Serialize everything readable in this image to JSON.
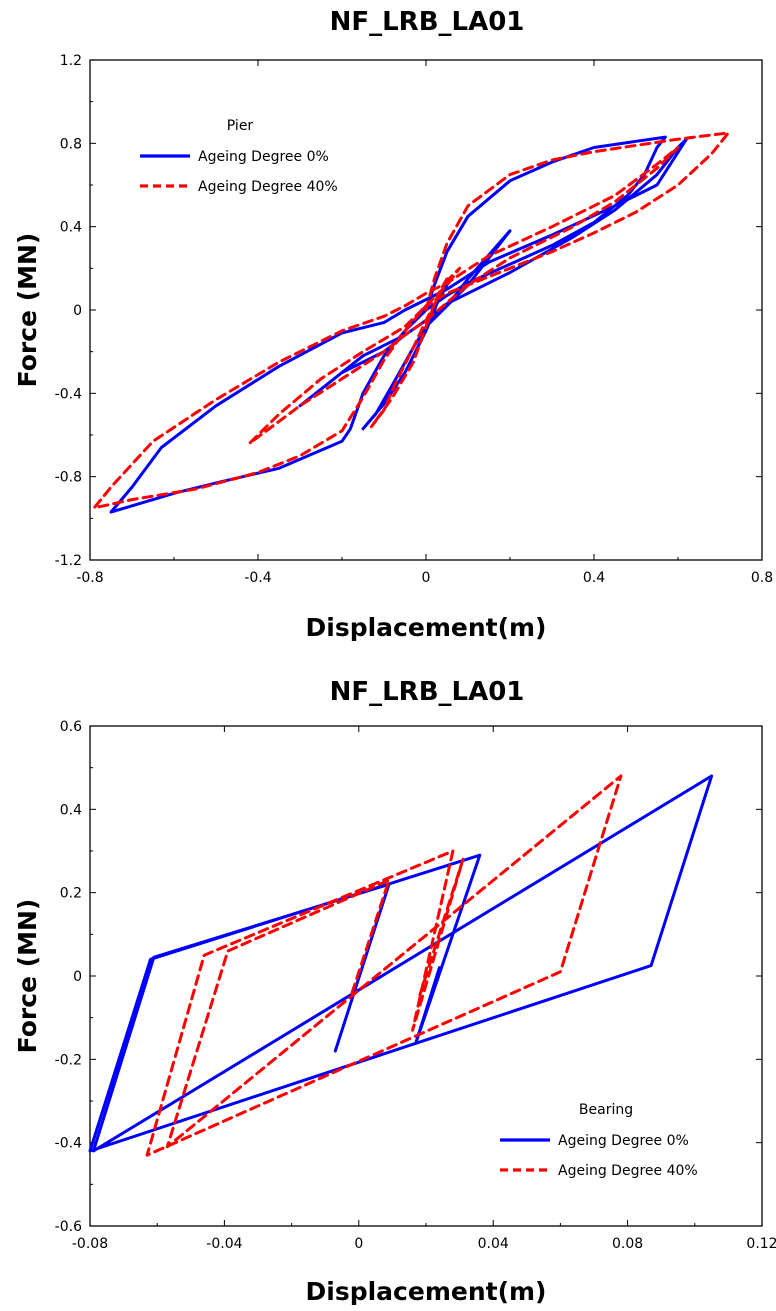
{
  "chart_data": [
    {
      "type": "line",
      "title": "NF_LRB_LA01",
      "xlabel": "Displacement(m)",
      "ylabel": "Force (MN)",
      "xlim": [
        -0.8,
        0.8
      ],
      "ylim": [
        -1.2,
        1.2
      ],
      "xticks": [
        -0.8,
        -0.4,
        0,
        0.4,
        0.8
      ],
      "yticks": [
        -1.2,
        -0.8,
        -0.4,
        0,
        0.4,
        0.8,
        1.2
      ],
      "xtick_labels": [
        "-0.8",
        "-0.4",
        "0",
        "0.4",
        "0.8"
      ],
      "ytick_labels": [
        "-1.2",
        "-0.8",
        "-0.4",
        "0",
        "0.4",
        "0.8",
        "1.2"
      ],
      "legend": {
        "title": "Pier",
        "placement": "top-left"
      },
      "grid": false,
      "series": [
        {
          "name": "Ageing Degree 0%",
          "color": "#0000ff",
          "style": "solid",
          "points": [
            [
              0,
              0
            ],
            [
              0.02,
              0.12
            ],
            [
              0.05,
              0.28
            ],
            [
              0.1,
              0.45
            ],
            [
              0.2,
              0.62
            ],
            [
              0.3,
              0.71
            ],
            [
              0.4,
              0.78
            ],
            [
              0.5,
              0.81
            ],
            [
              0.57,
              0.83
            ],
            [
              0.55,
              0.78
            ],
            [
              0.52,
              0.65
            ],
            [
              0.48,
              0.55
            ],
            [
              0.4,
              0.42
            ],
            [
              0.3,
              0.31
            ],
            [
              0.2,
              0.22
            ],
            [
              0.1,
              0.13
            ],
            [
              0.05,
              0.07
            ],
            [
              0,
              0
            ],
            [
              -0.05,
              -0.1
            ],
            [
              -0.1,
              -0.22
            ],
            [
              -0.15,
              -0.4
            ],
            [
              -0.18,
              -0.57
            ],
            [
              -0.2,
              -0.63
            ],
            [
              -0.35,
              -0.76
            ],
            [
              -0.5,
              -0.83
            ],
            [
              -0.6,
              -0.88
            ],
            [
              -0.75,
              -0.97
            ],
            [
              -0.7,
              -0.85
            ],
            [
              -0.63,
              -0.66
            ],
            [
              -0.5,
              -0.46
            ],
            [
              -0.35,
              -0.27
            ],
            [
              -0.2,
              -0.11
            ],
            [
              -0.1,
              -0.06
            ],
            [
              -0.05,
              0
            ],
            [
              0,
              0.05
            ],
            [
              0.05,
              0.1
            ],
            [
              0.15,
              0.23
            ],
            [
              0.3,
              0.36
            ],
            [
              0.45,
              0.5
            ],
            [
              0.55,
              0.6
            ],
            [
              0.62,
              0.82
            ],
            [
              0.6,
              0.78
            ],
            [
              0.55,
              0.65
            ],
            [
              0.45,
              0.48
            ],
            [
              0.35,
              0.35
            ],
            [
              0.2,
              0.18
            ],
            [
              0.1,
              0.08
            ],
            [
              0.05,
              0.03
            ],
            [
              0,
              -0.05
            ],
            [
              -0.05,
              -0.12
            ],
            [
              -0.1,
              -0.2
            ],
            [
              -0.2,
              -0.3
            ],
            [
              -0.3,
              -0.46
            ],
            [
              -0.25,
              -0.38
            ],
            [
              -0.15,
              -0.22
            ],
            [
              -0.05,
              -0.12
            ],
            [
              0,
              -0.05
            ],
            [
              0.05,
              0.02
            ],
            [
              0.1,
              0.15
            ],
            [
              0.2,
              0.38
            ],
            [
              0.15,
              0.25
            ],
            [
              0.1,
              0.12
            ],
            [
              0.05,
              0.02
            ],
            [
              0,
              -0.08
            ],
            [
              -0.03,
              -0.18
            ],
            [
              -0.08,
              -0.36
            ],
            [
              -0.12,
              -0.5
            ],
            [
              -0.15,
              -0.57
            ],
            [
              -0.1,
              -0.45
            ],
            [
              -0.05,
              -0.3
            ],
            [
              0,
              -0.1
            ],
            [
              0.03,
              0.05
            ],
            [
              0.05,
              0.12
            ]
          ]
        },
        {
          "name": "Ageing Degree 40%",
          "color": "#ff0000",
          "style": "dashed",
          "points": [
            [
              0,
              0
            ],
            [
              0.02,
              0.15
            ],
            [
              0.05,
              0.32
            ],
            [
              0.1,
              0.5
            ],
            [
              0.2,
              0.65
            ],
            [
              0.3,
              0.72
            ],
            [
              0.4,
              0.76
            ],
            [
              0.5,
              0.79
            ],
            [
              0.6,
              0.82
            ],
            [
              0.72,
              0.85
            ],
            [
              0.68,
              0.75
            ],
            [
              0.6,
              0.6
            ],
            [
              0.5,
              0.47
            ],
            [
              0.4,
              0.37
            ],
            [
              0.3,
              0.28
            ],
            [
              0.2,
              0.2
            ],
            [
              0.1,
              0.12
            ],
            [
              0.05,
              0.08
            ],
            [
              0,
              0.02
            ],
            [
              -0.05,
              -0.1
            ],
            [
              -0.1,
              -0.24
            ],
            [
              -0.15,
              -0.42
            ],
            [
              -0.2,
              -0.58
            ],
            [
              -0.3,
              -0.7
            ],
            [
              -0.4,
              -0.78
            ],
            [
              -0.55,
              -0.86
            ],
            [
              -0.7,
              -0.91
            ],
            [
              -0.79,
              -0.95
            ],
            [
              -0.75,
              -0.85
            ],
            [
              -0.65,
              -0.63
            ],
            [
              -0.5,
              -0.43
            ],
            [
              -0.35,
              -0.25
            ],
            [
              -0.2,
              -0.1
            ],
            [
              -0.1,
              -0.03
            ],
            [
              -0.05,
              0.02
            ],
            [
              0,
              0.08
            ],
            [
              0.05,
              0.13
            ],
            [
              0.15,
              0.26
            ],
            [
              0.3,
              0.4
            ],
            [
              0.45,
              0.55
            ],
            [
              0.55,
              0.7
            ],
            [
              0.6,
              0.78
            ],
            [
              0.55,
              0.68
            ],
            [
              0.45,
              0.52
            ],
            [
              0.35,
              0.4
            ],
            [
              0.2,
              0.25
            ],
            [
              0.1,
              0.12
            ],
            [
              0,
              -0.05
            ],
            [
              -0.05,
              -0.12
            ],
            [
              -0.1,
              -0.2
            ],
            [
              -0.2,
              -0.33
            ],
            [
              -0.3,
              -0.46
            ],
            [
              -0.42,
              -0.64
            ],
            [
              -0.35,
              -0.5
            ],
            [
              -0.25,
              -0.33
            ],
            [
              -0.15,
              -0.2
            ],
            [
              -0.05,
              -0.08
            ],
            [
              0,
              0.02
            ],
            [
              0.05,
              0.12
            ],
            [
              0.08,
              0.2
            ],
            [
              0.05,
              0.14
            ],
            [
              0,
              -0.05
            ],
            [
              -0.03,
              -0.18
            ],
            [
              -0.07,
              -0.34
            ],
            [
              -0.1,
              -0.48
            ],
            [
              -0.13,
              -0.56
            ],
            [
              -0.08,
              -0.42
            ],
            [
              -0.03,
              -0.25
            ],
            [
              0,
              -0.08
            ],
            [
              0.03,
              0.08
            ],
            [
              0.05,
              0.15
            ]
          ]
        }
      ]
    },
    {
      "type": "line",
      "title": "NF_LRB_LA01",
      "xlabel": "Displacement(m)",
      "ylabel": "Force (MN)",
      "xlim": [
        -0.08,
        0.12
      ],
      "ylim": [
        -0.6,
        0.6
      ],
      "xticks": [
        -0.08,
        -0.04,
        0,
        0.04,
        0.08,
        0.12
      ],
      "yticks": [
        -0.6,
        -0.4,
        -0.2,
        0,
        0.2,
        0.4,
        0.6
      ],
      "xtick_labels": [
        "-0.08",
        "-0.04",
        "0",
        "0.04",
        "0.08",
        "0.12"
      ],
      "ytick_labels": [
        "-0.6",
        "-0.4",
        "-0.2",
        "0",
        "0.2",
        "0.4",
        "0.6"
      ],
      "legend": {
        "title": "Bearing",
        "placement": "bottom-right"
      },
      "grid": false,
      "series": [
        {
          "name": "Ageing Degree 0%",
          "color": "#0000ff",
          "style": "solid",
          "points": [
            [
              -0.007,
              -0.18
            ],
            [
              0.009,
              0.22
            ],
            [
              -0.061,
              0.045
            ],
            [
              -0.079,
              -0.42
            ],
            [
              0.105,
              0.48
            ],
            [
              0.087,
              0.025
            ],
            [
              -0.08,
              -0.42
            ],
            [
              -0.062,
              0.04
            ],
            [
              0.036,
              0.29
            ],
            [
              0.017,
              -0.16
            ],
            [
              0.024,
              0.02
            ]
          ]
        },
        {
          "name": "Ageing Degree 40%",
          "color": "#ff0000",
          "style": "dashed",
          "points": [
            [
              -0.002,
              -0.04
            ],
            [
              0.009,
              0.23
            ],
            [
              -0.039,
              0.06
            ],
            [
              -0.057,
              -0.41
            ],
            [
              0.078,
              0.48
            ],
            [
              0.06,
              0.01
            ],
            [
              -0.063,
              -0.43
            ],
            [
              -0.046,
              0.05
            ],
            [
              0.028,
              0.3
            ],
            [
              0.016,
              -0.13
            ],
            [
              0.031,
              0.28
            ],
            [
              0.018,
              -0.05
            ]
          ]
        }
      ]
    }
  ]
}
